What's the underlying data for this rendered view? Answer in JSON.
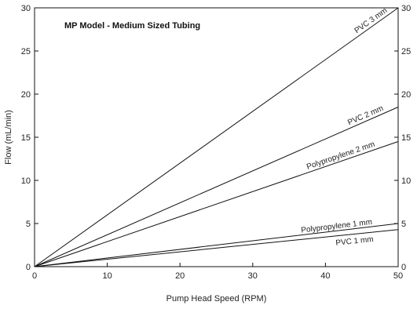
{
  "chart_data": {
    "type": "line",
    "title": "MP Model - Medium Sized Tubing",
    "xlabel": "Pump Head Speed (RPM)",
    "ylabel": "Flow (mL/min)",
    "xlim": [
      0,
      50
    ],
    "ylim": [
      0,
      30
    ],
    "x_ticks": [
      0,
      10,
      20,
      30,
      40,
      50
    ],
    "y_ticks": [
      0,
      5,
      10,
      15,
      20,
      25,
      30
    ],
    "y_axis_right_mirrored": true,
    "grid": false,
    "legend": "inline labels at line ends",
    "series": [
      {
        "name": "PVC 3 mm",
        "x": [
          0,
          50
        ],
        "y": [
          0,
          30
        ]
      },
      {
        "name": "PVC 2 mm",
        "x": [
          0,
          50
        ],
        "y": [
          0,
          18.5
        ]
      },
      {
        "name": "Polypropylene 2 mm",
        "x": [
          0,
          50
        ],
        "y": [
          0,
          14.5
        ]
      },
      {
        "name": "Polypropylene 1 mm",
        "x": [
          0,
          50
        ],
        "y": [
          0,
          5
        ]
      },
      {
        "name": "PVC 1 mm",
        "x": [
          0,
          50
        ],
        "y": [
          0,
          4.3
        ]
      }
    ]
  }
}
